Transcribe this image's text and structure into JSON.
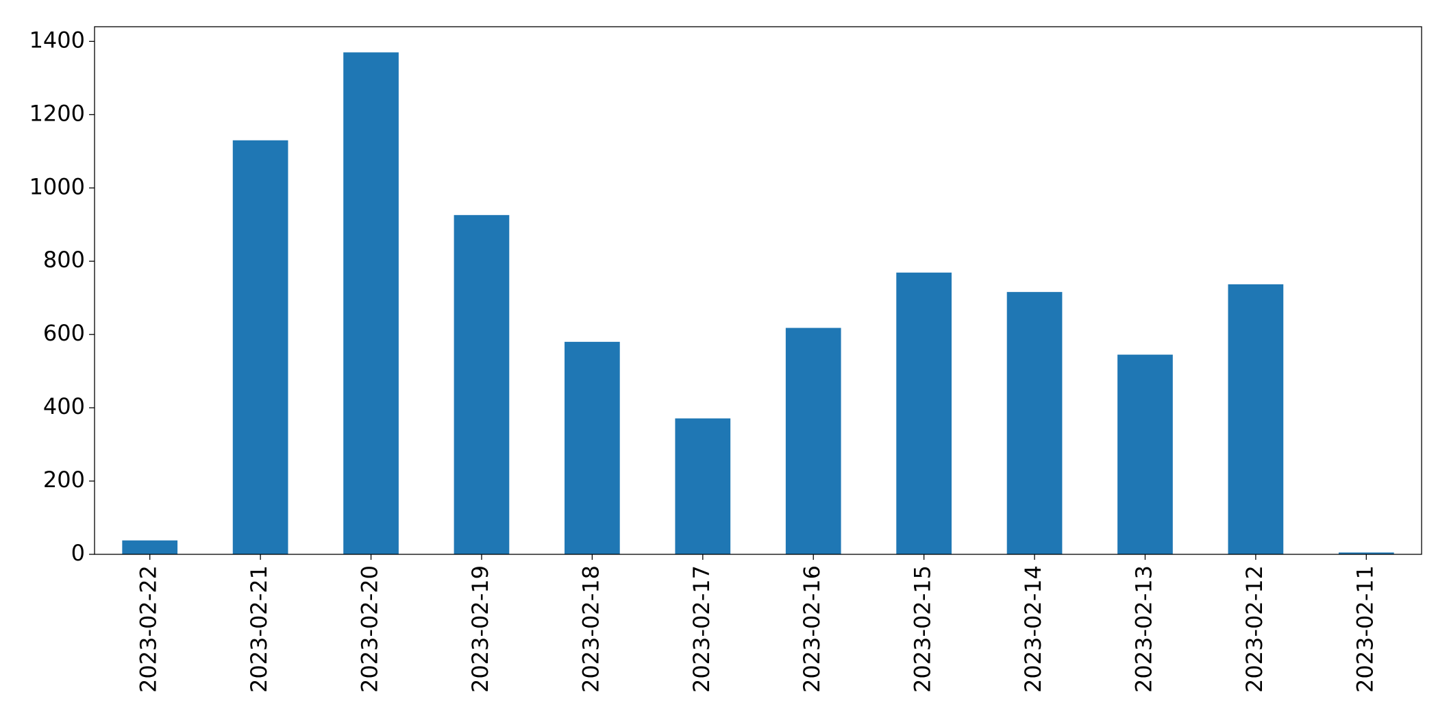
{
  "chart_data": {
    "type": "bar",
    "categories": [
      "2023-02-22",
      "2023-02-21",
      "2023-02-20",
      "2023-02-19",
      "2023-02-18",
      "2023-02-17",
      "2023-02-16",
      "2023-02-15",
      "2023-02-14",
      "2023-02-13",
      "2023-02-12",
      "2023-02-11"
    ],
    "values": [
      38,
      1130,
      1370,
      926,
      580,
      371,
      618,
      769,
      716,
      545,
      737,
      5
    ],
    "color": "#1f77b4",
    "ylim": [
      0,
      1440
    ],
    "yticks": [
      0,
      200,
      400,
      600,
      800,
      1000,
      1200,
      1400
    ],
    "grid": false
  }
}
